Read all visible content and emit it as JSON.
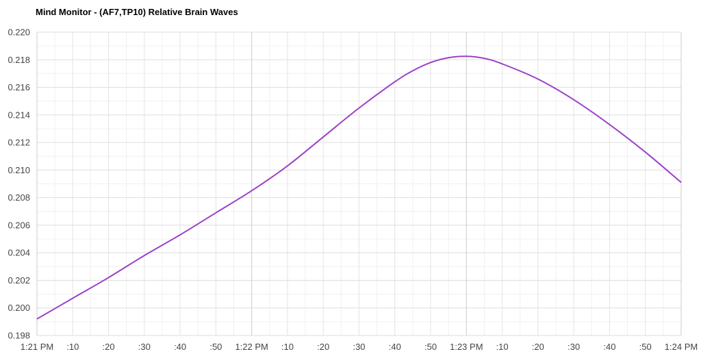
{
  "chart_data": {
    "type": "line",
    "title": "Mind Monitor - (AF7,TP10) Relative Brain Waves",
    "xlabel": "",
    "ylabel": "",
    "x_unit": "seconds after 1:21 PM",
    "xlim": [
      0,
      180
    ],
    "ylim": [
      0.198,
      0.22
    ],
    "grid": true,
    "legend": "none",
    "y_ticks": [
      0.198,
      0.2,
      0.202,
      0.204,
      0.206,
      0.208,
      0.21,
      0.212,
      0.214,
      0.216,
      0.218,
      0.22
    ],
    "y_tick_labels": [
      "0.198",
      "0.200",
      "0.202",
      "0.204",
      "0.206",
      "0.208",
      "0.210",
      "0.212",
      "0.214",
      "0.216",
      "0.218",
      "0.220"
    ],
    "x_ticks": [
      0,
      10,
      20,
      30,
      40,
      50,
      60,
      70,
      80,
      90,
      100,
      110,
      120,
      130,
      140,
      150,
      160,
      170,
      180
    ],
    "x_tick_labels": [
      "1:21 PM",
      ":10",
      ":20",
      ":30",
      ":40",
      ":50",
      "1:22 PM",
      ":10",
      ":20",
      ":30",
      ":40",
      ":50",
      "1:23 PM",
      ":10",
      ":20",
      ":30",
      ":40",
      ":50",
      "1:24 PM"
    ],
    "major_x_ticks": [
      60,
      120
    ],
    "series": [
      {
        "color": "#9b3fc8",
        "x": [
          0,
          10,
          20,
          30,
          40,
          50,
          60,
          70,
          80,
          90,
          100,
          105,
          110,
          115,
          120,
          125,
          130,
          140,
          150,
          160,
          170,
          180
        ],
        "y": [
          0.1992,
          0.2007,
          0.2022,
          0.2038,
          0.2053,
          0.2069,
          0.2085,
          0.2103,
          0.2124,
          0.2145,
          0.2164,
          0.2172,
          0.2178,
          0.21815,
          0.21825,
          0.2181,
          0.2177,
          0.2166,
          0.2151,
          0.2133,
          0.2113,
          0.2091
        ]
      }
    ]
  }
}
